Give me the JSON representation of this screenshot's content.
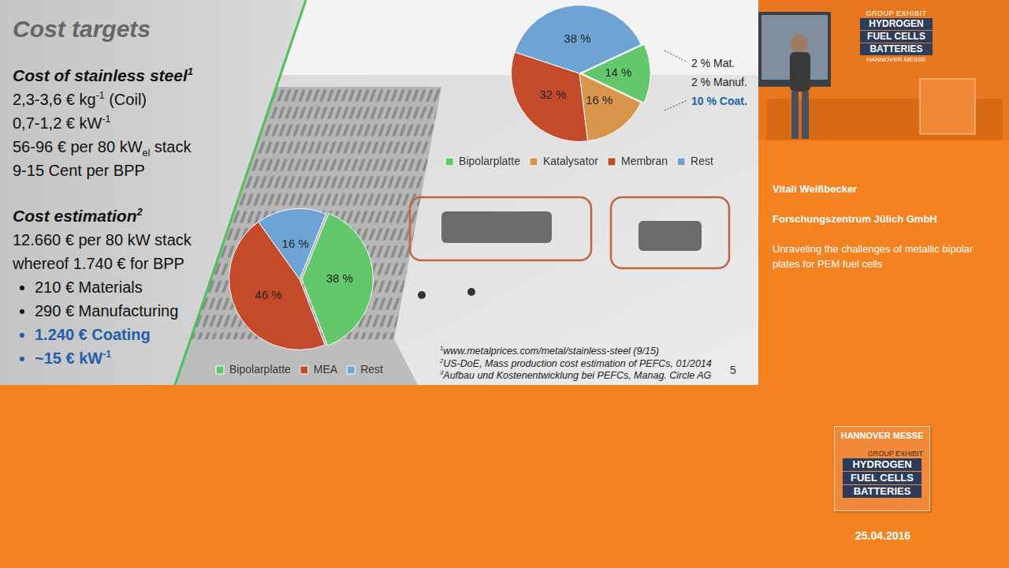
{
  "chart_data": [
    {
      "type": "pie",
      "categories": [
        "Bipolarplatte",
        "Katalysator",
        "Membran",
        "Rest"
      ],
      "values": [
        14,
        16,
        32,
        38
      ],
      "value_labels": [
        "14 %",
        "16 %",
        "32 %",
        "38 %"
      ],
      "colors": [
        "#63c86b",
        "#d9954c",
        "#c34b2b",
        "#6ea4d3"
      ],
      "data_labels": true,
      "legend": "bottom",
      "annotations": [
        {
          "text": "2 % Mat."
        },
        {
          "text": "2 % Manuf."
        },
        {
          "text": "10 % Coat.",
          "color": "#1f5fae"
        }
      ]
    },
    {
      "type": "pie",
      "categories": [
        "Bipolarplatte",
        "MEA",
        "Rest"
      ],
      "values": [
        38,
        46,
        16
      ],
      "value_labels": [
        "38 %",
        "46 %",
        "16 %"
      ],
      "colors": [
        "#63c86b",
        "#c34b2b",
        "#6ea4d3"
      ],
      "data_labels": true,
      "legend": "bottom"
    }
  ],
  "slide": {
    "title": "Cost targets",
    "sections": [
      {
        "heading": "Cost of stainless steel",
        "note": "1",
        "lines": [
          [
            "2,3-3,6 € kg",
            {
              "sup": "-1"
            },
            " (Coil)"
          ],
          [
            "0,7-1,2 € kW",
            {
              "sup": "-1"
            }
          ],
          [
            "56-96 € per 80 kW",
            {
              "sub": "el"
            },
            " stack"
          ],
          [
            "9-15 Cent per BPP"
          ]
        ],
        "bullets": []
      },
      {
        "heading": "Cost estimation",
        "note": "2",
        "lines": [
          [
            "12.660 € per 80 kW stack"
          ],
          [
            "whereof  1.740 € for BPP"
          ]
        ],
        "bullets": [
          {
            "text": [
              "210 € Materials"
            ]
          },
          {
            "text": [
              "290 € Manufacturing"
            ]
          },
          {
            "text": [
              "1.240 € Coating"
            ],
            "color": "#1f5fae"
          },
          {
            "text": [
              "~15 € kW",
              {
                "sup": "-1"
              }
            ],
            "color": "#1f5fae"
          }
        ]
      }
    ],
    "footnotes": [
      [
        {
          "sup": "1"
        },
        "www.metalprices.com/metal/stainless-steel (9/15)"
      ],
      [
        {
          "sup": "2"
        },
        "US-DoE, Mass production cost estimation of PEFCs, 01/2014"
      ],
      [
        {
          "sup": "3"
        },
        "Aufbau und Kostenentwicklung bei PEFCs, Manag. Circle AG"
      ]
    ],
    "page_number": "5"
  },
  "video_sign": {
    "group": "GROUP EXHIBIT",
    "topics": [
      "HYDROGEN",
      "FUEL CELLS",
      "BATTERIES"
    ],
    "brand": "HANNOVER MESSE"
  },
  "presenter": {
    "name": "Vitali Weißbecker",
    "organization": "Forschungszentrum Jülich GmbH",
    "talk_title": "Unraveling the challenges of metallic bipolar plates for PEM fuel cells"
  },
  "logo": {
    "brand": "HANNOVER MESSE",
    "group": "GROUP EXHIBIT",
    "topics": [
      "HYDROGEN",
      "FUEL CELLS",
      "BATTERIES"
    ]
  },
  "date": "25.04.2016"
}
